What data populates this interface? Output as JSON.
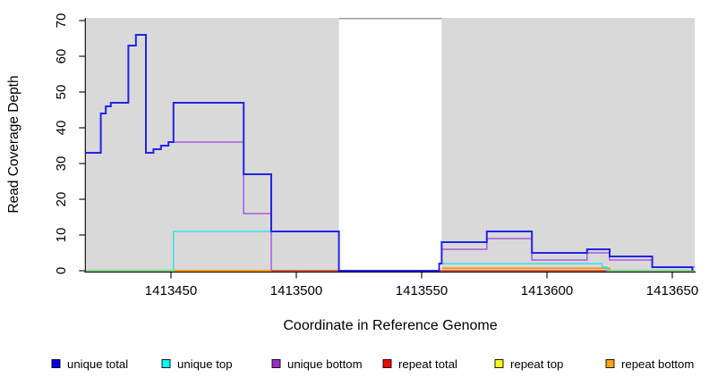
{
  "page": {
    "background": "#ffffff",
    "description": "R-style read coverage depth step plot over a reference genome region"
  },
  "chart_data": {
    "type": "line",
    "subtype": "step",
    "title": "",
    "xlabel": "Coordinate in Reference Genome",
    "ylabel": "Read Coverage Depth",
    "xlim": [
      1413416,
      1413659
    ],
    "ylim": [
      0,
      70
    ],
    "x_ticks": [
      "1413450",
      "1413500",
      "1413550",
      "1413600",
      "1413650"
    ],
    "x_tick_values": [
      1413450,
      1413500,
      1413550,
      1413600,
      1413650
    ],
    "y_ticks": [
      "0",
      "10",
      "20",
      "30",
      "40",
      "50",
      "60",
      "70"
    ],
    "y_tick_values": [
      0,
      10,
      20,
      30,
      40,
      50,
      60,
      70
    ],
    "grid": false,
    "plot_background": "#d9d9d9",
    "masked_region": {
      "from": 1413517,
      "to": 1413558,
      "fill": "#ffffff",
      "top_line_color": "#9b9b9b"
    },
    "series": [
      {
        "name": "unique total",
        "slug": "unique-total",
        "color": "#2323e8",
        "legend_color": "#0000ee",
        "line_width": 2,
        "segments": [
          [
            [
              1413416,
              33
            ],
            [
              1413422,
              44
            ],
            [
              1413424,
              46
            ],
            [
              1413426,
              47
            ],
            [
              1413433,
              63
            ],
            [
              1413436,
              66
            ],
            [
              1413440,
              33
            ],
            [
              1413443,
              34
            ],
            [
              1413446,
              35
            ],
            [
              1413449,
              36
            ],
            [
              1413451,
              47
            ],
            [
              1413479,
              27
            ],
            [
              1413490,
              11
            ],
            [
              1413517,
              0
            ],
            [
              1413557,
              2
            ],
            [
              1413558,
              8
            ],
            [
              1413576,
              11
            ],
            [
              1413594,
              5
            ],
            [
              1413616,
              6
            ],
            [
              1413625,
              4
            ],
            [
              1413642,
              1
            ],
            [
              1413658,
              0
            ]
          ]
        ]
      },
      {
        "name": "unique top",
        "slug": "unique-top",
        "color": "#35dfea",
        "legend_color": "#00ffff",
        "line_width": 1.5,
        "segments": [
          [
            [
              1413416,
              0
            ],
            [
              1413451,
              11
            ],
            [
              1413517,
              0
            ],
            [
              1413557,
              2
            ],
            [
              1413622,
              1
            ],
            [
              1413624,
              0
            ],
            [
              1413659,
              0
            ]
          ]
        ]
      },
      {
        "name": "unique bottom",
        "slug": "unique-bottom",
        "color": "#a55ae0",
        "legend_color": "#9932cc",
        "line_width": 1.5,
        "segments": [
          [
            [
              1413416,
              33
            ],
            [
              1413422,
              44
            ],
            [
              1413424,
              46
            ],
            [
              1413426,
              47
            ],
            [
              1413433,
              63
            ],
            [
              1413436,
              66
            ],
            [
              1413440,
              33
            ],
            [
              1413443,
              34
            ],
            [
              1413446,
              35
            ],
            [
              1413449,
              36
            ],
            [
              1413479,
              16
            ],
            [
              1413490,
              0
            ]
          ],
          [
            [
              1413558,
              6
            ],
            [
              1413576,
              9
            ],
            [
              1413594,
              3
            ],
            [
              1413616,
              5
            ],
            [
              1413625,
              3
            ],
            [
              1413642,
              1
            ],
            [
              1413659,
              1
            ]
          ]
        ]
      },
      {
        "name": "repeat total",
        "slug": "repeat-total",
        "color": "#cc2936",
        "legend_color": "#ff0000",
        "line_width": 1.5,
        "segments": [
          [
            [
              1413416,
              0
            ],
            [
              1413659,
              0
            ]
          ]
        ]
      },
      {
        "name": "repeat top",
        "slug": "repeat-top",
        "color": "#ffff00",
        "legend_color": "#ffff00",
        "line_width": 1.5,
        "segments": [
          [
            [
              1413416,
              0
            ],
            [
              1413659,
              0
            ]
          ]
        ]
      },
      {
        "name": "repeat bottom",
        "slug": "repeat-bottom",
        "color": "#ff9d00",
        "legend_color": "#ffa500",
        "line_width": 1.8,
        "segments": [
          [
            [
              1413451,
              0
            ],
            [
              1413490,
              0
            ]
          ],
          [
            [
              1413558,
              0.7
            ],
            [
              1413625,
              0.7
            ],
            [
              1413625,
              0
            ]
          ]
        ]
      }
    ],
    "overlap_baseline": {
      "name": "top-strands overlap at zero",
      "color": "#7dd87d",
      "line_width": 1.5,
      "segments": [
        [
          [
            1413416,
            0
          ],
          [
            1413451,
            0
          ]
        ],
        [
          [
            1413625,
            0
          ],
          [
            1413659,
            0
          ]
        ]
      ]
    },
    "draw_order": [
      "repeat-top",
      "repeat-total",
      "repeat-bottom",
      "unique-top",
      "overlap",
      "unique-bottom",
      "unique-total"
    ],
    "legend": {
      "position": "bottom",
      "entries": [
        {
          "label": "unique total",
          "color": "#0000ee"
        },
        {
          "label": "unique top",
          "color": "#00ffff"
        },
        {
          "label": "unique bottom",
          "color": "#9932cc"
        },
        {
          "label": "repeat total",
          "color": "#ff0000"
        },
        {
          "label": "repeat top",
          "color": "#ffff00"
        },
        {
          "label": "repeat bottom",
          "color": "#ffa500"
        }
      ]
    }
  }
}
